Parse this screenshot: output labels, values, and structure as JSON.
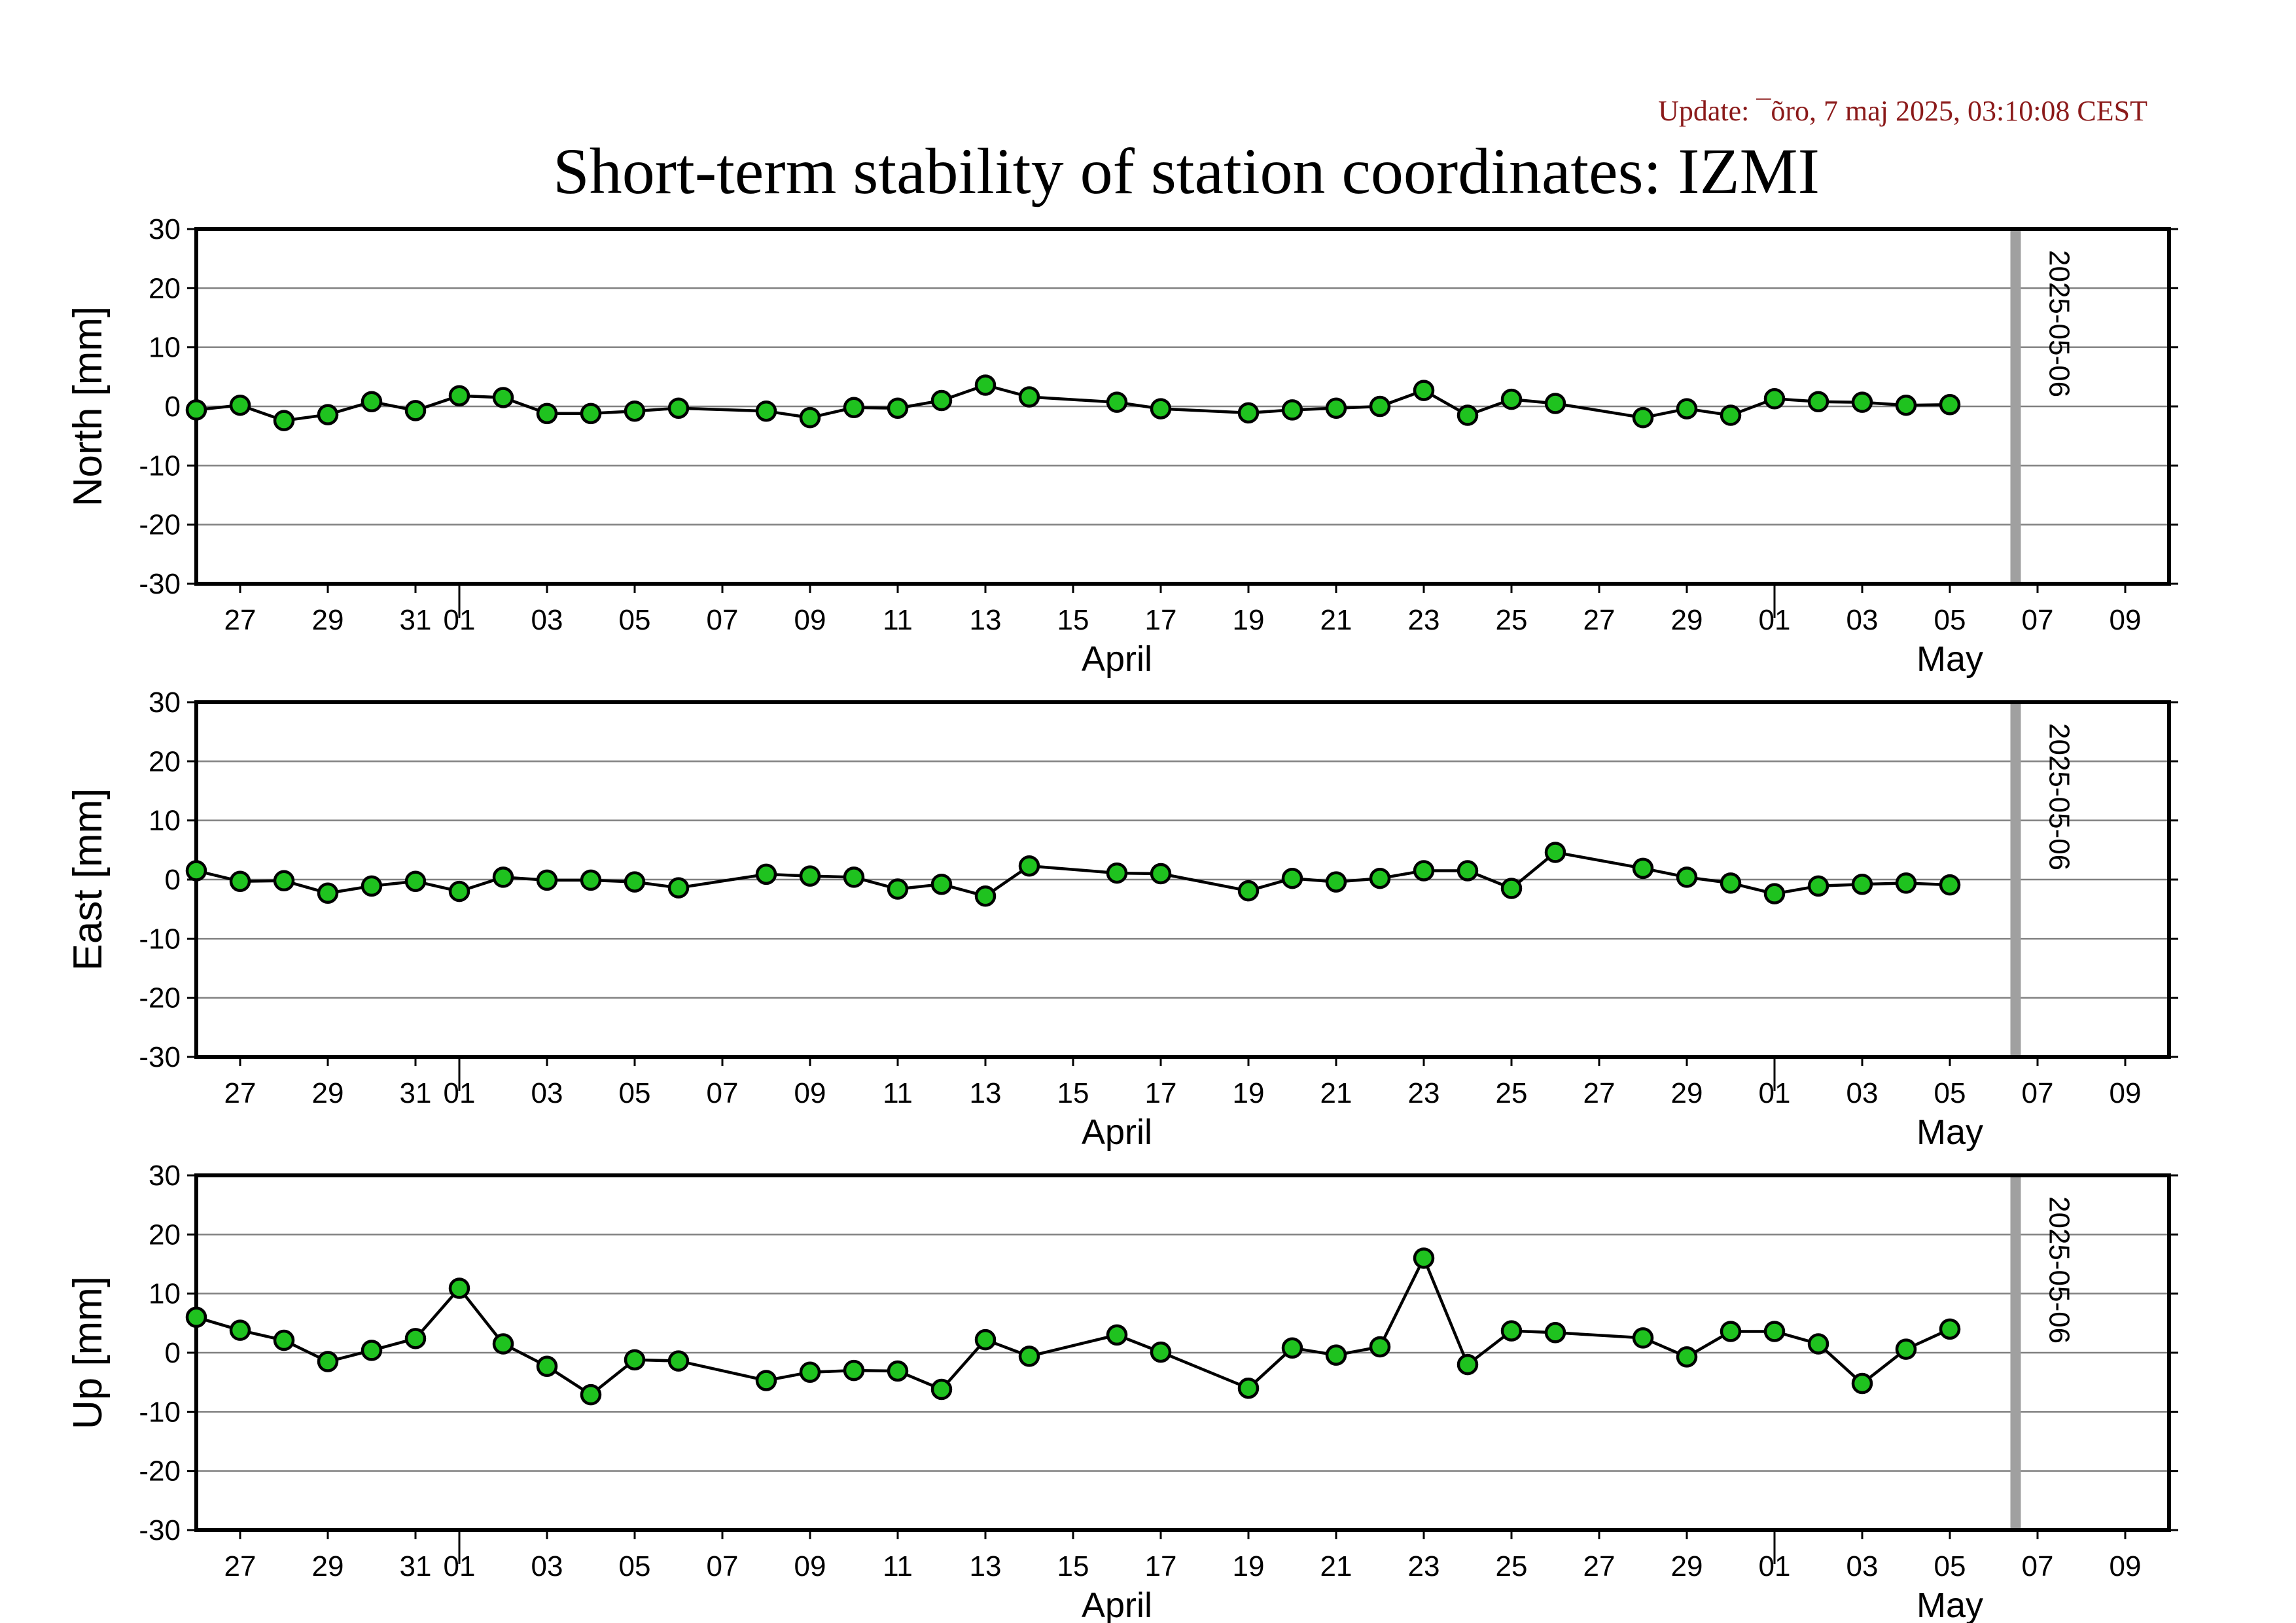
{
  "header": {
    "update": "Update: ¯õro, 7 maj 2025, 03:10:08 CEST",
    "title": "Short-term stability of station coordinates: IZMI"
  },
  "colors": {
    "marker_fill": "#1fc21f",
    "marker_edge": "#000000",
    "line": "#000000",
    "grid": "#808080",
    "current_day_line": "#a0a0a0",
    "update_text": "#8b1a1a"
  },
  "chart_data": {
    "type": "line",
    "x_range": [
      "2025-03-26",
      "2025-05-10"
    ],
    "x_tick_labels": [
      "27",
      "29",
      "31",
      "01",
      "03",
      "05",
      "07",
      "09",
      "11",
      "13",
      "15",
      "17",
      "19",
      "21",
      "23",
      "25",
      "27",
      "29",
      "01",
      "03",
      "05",
      "07",
      "09"
    ],
    "x_tick_dates": [
      "2025-03-27",
      "2025-03-29",
      "2025-03-31",
      "2025-04-01",
      "2025-04-03",
      "2025-04-05",
      "2025-04-07",
      "2025-04-09",
      "2025-04-11",
      "2025-04-13",
      "2025-04-15",
      "2025-04-17",
      "2025-04-19",
      "2025-04-21",
      "2025-04-23",
      "2025-04-25",
      "2025-04-27",
      "2025-04-29",
      "2025-05-01",
      "2025-05-03",
      "2025-05-05",
      "2025-05-07",
      "2025-05-09"
    ],
    "month_labels": [
      {
        "text": "April",
        "date": "2025-04-16"
      },
      {
        "text": "May",
        "date": "2025-05-05"
      }
    ],
    "month_boundaries": [
      "2025-04-01",
      "2025-05-01"
    ],
    "current_day": {
      "date": "2025-05-06",
      "label": "2025-05-06"
    },
    "ylim": [
      -30,
      30
    ],
    "y_ticks": [
      30,
      20,
      10,
      0,
      -10,
      -20,
      -30
    ],
    "grid": true,
    "panels": [
      {
        "ylabel": "North [mm]",
        "points": [
          [
            "2025-03-26",
            -0.6
          ],
          [
            "2025-03-27",
            0.2
          ],
          [
            "2025-03-28",
            -2.4
          ],
          [
            "2025-03-29",
            -1.4
          ],
          [
            "2025-03-30",
            0.8
          ],
          [
            "2025-03-31",
            -0.7
          ],
          [
            "2025-04-01",
            1.8
          ],
          [
            "2025-04-02",
            1.5
          ],
          [
            "2025-04-03",
            -1.2
          ],
          [
            "2025-04-04",
            -1.2
          ],
          [
            "2025-04-05",
            -0.8
          ],
          [
            "2025-04-06",
            -0.3
          ],
          [
            "2025-04-08",
            -0.8
          ],
          [
            "2025-04-09",
            -1.9
          ],
          [
            "2025-04-10",
            -0.2
          ],
          [
            "2025-04-11",
            -0.3
          ],
          [
            "2025-04-12",
            1.0
          ],
          [
            "2025-04-13",
            3.6
          ],
          [
            "2025-04-14",
            1.6
          ],
          [
            "2025-04-16",
            0.7
          ],
          [
            "2025-04-17",
            -0.4
          ],
          [
            "2025-04-19",
            -1.1
          ],
          [
            "2025-04-20",
            -0.6
          ],
          [
            "2025-04-21",
            -0.3
          ],
          [
            "2025-04-22",
            0.0
          ],
          [
            "2025-04-23",
            2.7
          ],
          [
            "2025-04-24",
            -1.5
          ],
          [
            "2025-04-25",
            1.2
          ],
          [
            "2025-04-26",
            0.5
          ],
          [
            "2025-04-28",
            -1.9
          ],
          [
            "2025-04-29",
            -0.4
          ],
          [
            "2025-04-30",
            -1.5
          ],
          [
            "2025-05-01",
            1.3
          ],
          [
            "2025-05-02",
            0.8
          ],
          [
            "2025-05-03",
            0.7
          ],
          [
            "2025-05-04",
            0.2
          ],
          [
            "2025-05-05",
            0.3
          ]
        ]
      },
      {
        "ylabel": "East [mm]",
        "points": [
          [
            "2025-03-26",
            1.5
          ],
          [
            "2025-03-27",
            -0.3
          ],
          [
            "2025-03-28",
            -0.2
          ],
          [
            "2025-03-29",
            -2.3
          ],
          [
            "2025-03-30",
            -1.1
          ],
          [
            "2025-03-31",
            -0.3
          ],
          [
            "2025-04-01",
            -2.0
          ],
          [
            "2025-04-02",
            0.4
          ],
          [
            "2025-04-03",
            -0.1
          ],
          [
            "2025-04-04",
            -0.1
          ],
          [
            "2025-04-05",
            -0.4
          ],
          [
            "2025-04-06",
            -1.4
          ],
          [
            "2025-04-08",
            0.9
          ],
          [
            "2025-04-09",
            0.6
          ],
          [
            "2025-04-10",
            0.4
          ],
          [
            "2025-04-11",
            -1.6
          ],
          [
            "2025-04-12",
            -0.8
          ],
          [
            "2025-04-13",
            -2.8
          ],
          [
            "2025-04-14",
            2.3
          ],
          [
            "2025-04-16",
            1.1
          ],
          [
            "2025-04-17",
            1.0
          ],
          [
            "2025-04-19",
            -1.9
          ],
          [
            "2025-04-20",
            0.2
          ],
          [
            "2025-04-21",
            -0.4
          ],
          [
            "2025-04-22",
            0.2
          ],
          [
            "2025-04-23",
            1.5
          ],
          [
            "2025-04-24",
            1.5
          ],
          [
            "2025-04-25",
            -1.5
          ],
          [
            "2025-04-26",
            4.6
          ],
          [
            "2025-04-28",
            1.9
          ],
          [
            "2025-04-29",
            0.4
          ],
          [
            "2025-04-30",
            -0.6
          ],
          [
            "2025-05-01",
            -2.4
          ],
          [
            "2025-05-02",
            -1.1
          ],
          [
            "2025-05-03",
            -0.8
          ],
          [
            "2025-05-04",
            -0.6
          ],
          [
            "2025-05-05",
            -0.9
          ]
        ]
      },
      {
        "ylabel": "Up [mm]",
        "points": [
          [
            "2025-03-26",
            6.0
          ],
          [
            "2025-03-27",
            3.8
          ],
          [
            "2025-03-28",
            2.1
          ],
          [
            "2025-03-29",
            -1.5
          ],
          [
            "2025-03-30",
            0.4
          ],
          [
            "2025-03-31",
            2.4
          ],
          [
            "2025-04-01",
            10.9
          ],
          [
            "2025-04-02",
            1.5
          ],
          [
            "2025-04-03",
            -2.3
          ],
          [
            "2025-04-04",
            -7.1
          ],
          [
            "2025-04-05",
            -1.2
          ],
          [
            "2025-04-06",
            -1.4
          ],
          [
            "2025-04-08",
            -4.7
          ],
          [
            "2025-04-09",
            -3.3
          ],
          [
            "2025-04-10",
            -3.0
          ],
          [
            "2025-04-11",
            -3.1
          ],
          [
            "2025-04-12",
            -6.2
          ],
          [
            "2025-04-13",
            2.2
          ],
          [
            "2025-04-14",
            -0.6
          ],
          [
            "2025-04-16",
            3.0
          ],
          [
            "2025-04-17",
            0.1
          ],
          [
            "2025-04-19",
            -6.0
          ],
          [
            "2025-04-20",
            0.8
          ],
          [
            "2025-04-21",
            -0.4
          ],
          [
            "2025-04-22",
            1.0
          ],
          [
            "2025-04-23",
            16.0
          ],
          [
            "2025-04-24",
            -2.0
          ],
          [
            "2025-04-25",
            3.7
          ],
          [
            "2025-04-26",
            3.4
          ],
          [
            "2025-04-28",
            2.5
          ],
          [
            "2025-04-29",
            -0.7
          ],
          [
            "2025-04-30",
            3.6
          ],
          [
            "2025-05-01",
            3.6
          ],
          [
            "2025-05-02",
            1.5
          ],
          [
            "2025-05-03",
            -5.2
          ],
          [
            "2025-05-04",
            0.6
          ],
          [
            "2025-05-05",
            4.0
          ]
        ]
      }
    ]
  }
}
